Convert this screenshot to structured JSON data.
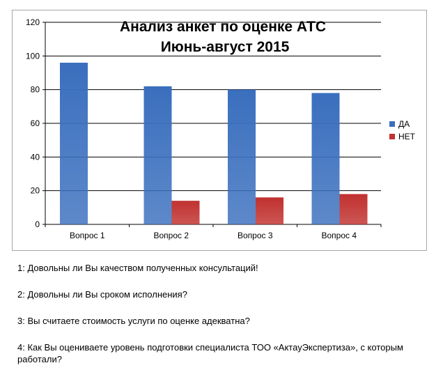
{
  "chart_data": {
    "type": "bar",
    "title": "Анализ анкет по оценке АТС",
    "subtitle": "Июнь-август 2015",
    "categories": [
      "Вопрос 1",
      "Вопрос 2",
      "Вопрос 3",
      "Вопрос  4"
    ],
    "series": [
      {
        "name": "ДА",
        "values": [
          96,
          82,
          80,
          78
        ],
        "color": "#3a6fbe"
      },
      {
        "name": "НЕТ",
        "values": [
          0,
          14,
          16,
          18
        ],
        "color": "#c0312f"
      }
    ],
    "ylim": [
      0,
      120
    ],
    "yticks": [
      "0",
      "20",
      "40",
      "60",
      "80",
      "100",
      "120"
    ],
    "grid": true,
    "legend_position": "right"
  },
  "notes": [
    "1: Довольны ли Вы качеством полученных консультаций!",
    "2: Довольны ли Вы сроком исполнения?",
    "3: Вы считаете стоимость услуги по оценке адекватна?",
    "4: Как Вы оцениваете уровень подготовки специалиста ТОО «АктауЭкспертиза», с которым работали?"
  ]
}
